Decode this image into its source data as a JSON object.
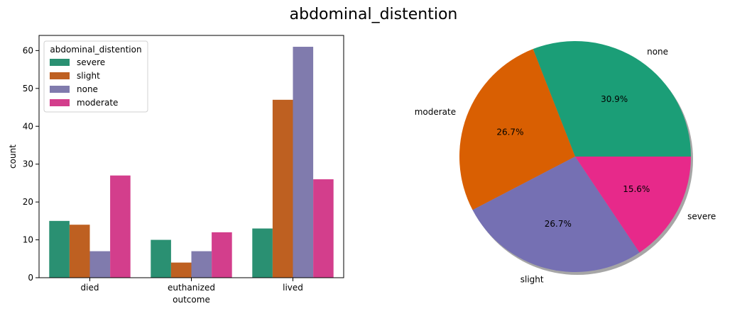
{
  "figure": {
    "title": "abdominal_distention"
  },
  "chart_data": [
    {
      "type": "bar",
      "xlabel": "outcome",
      "ylabel": "count",
      "categories": [
        "died",
        "euthanized",
        "lived"
      ],
      "ylim": [
        0,
        64
      ],
      "yticks": [
        0,
        10,
        20,
        30,
        40,
        50,
        60
      ],
      "grid": false,
      "legend": {
        "title": "abdominal_distention",
        "placement": "top-left"
      },
      "series": [
        {
          "name": "severe",
          "color": "#2A9072",
          "values": [
            15,
            10,
            13
          ]
        },
        {
          "name": "slight",
          "color": "#BE6021",
          "values": [
            14,
            4,
            47
          ]
        },
        {
          "name": "none",
          "color": "#807BAD",
          "values": [
            7,
            7,
            61
          ]
        },
        {
          "name": "moderate",
          "color": "#D33E8C",
          "values": [
            27,
            12,
            26
          ]
        }
      ]
    },
    {
      "type": "pie",
      "slices": [
        {
          "label": "none",
          "value": 30.9,
          "pct_label": "30.9%",
          "color": "#1B9E77"
        },
        {
          "label": "moderate",
          "value": 26.7,
          "pct_label": "26.7%",
          "color": "#D95F02"
        },
        {
          "label": "slight",
          "value": 26.7,
          "pct_label": "26.7%",
          "color": "#7570B3"
        },
        {
          "label": "severe",
          "value": 15.6,
          "pct_label": "15.6%",
          "color": "#E7298A"
        }
      ]
    }
  ]
}
